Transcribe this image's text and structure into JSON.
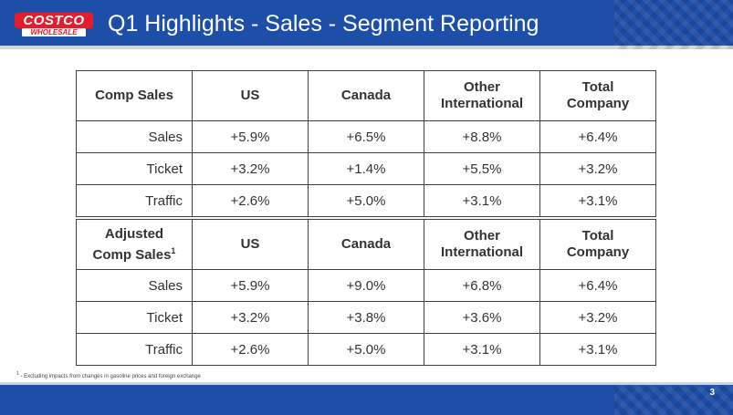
{
  "header": {
    "logo_top": "COSTCO",
    "logo_bottom": "WHOLESALE",
    "title": "Q1 Highlights - Sales - Segment Reporting"
  },
  "table1": {
    "header": {
      "label": "Comp Sales",
      "us": "US",
      "canada": "Canada",
      "other_line1": "Other",
      "other_line2": "International",
      "total_line1": "Total",
      "total_line2": "Company"
    },
    "rows": [
      {
        "label": "Sales",
        "us": "+5.9%",
        "canada": "+6.5%",
        "other": "+8.8%",
        "total": "+6.4%"
      },
      {
        "label": "Ticket",
        "us": "+3.2%",
        "canada": "+1.4%",
        "other": "+5.5%",
        "total": "+3.2%"
      },
      {
        "label": "Traffic",
        "us": "+2.6%",
        "canada": "+5.0%",
        "other": "+3.1%",
        "total": "+3.1%"
      }
    ]
  },
  "table2": {
    "header": {
      "label_line1": "Adjusted",
      "label_line2": "Comp Sales",
      "label_sup": "1",
      "us": "US",
      "canada": "Canada",
      "other_line1": "Other",
      "other_line2": "International",
      "total_line1": "Total",
      "total_line2": "Company"
    },
    "rows": [
      {
        "label": "Sales",
        "us": "+5.9%",
        "canada": "+9.0%",
        "other": "+6.8%",
        "total": "+6.4%"
      },
      {
        "label": "Ticket",
        "us": "+3.2%",
        "canada": "+3.8%",
        "other": "+3.6%",
        "total": "+3.2%"
      },
      {
        "label": "Traffic",
        "us": "+2.6%",
        "canada": "+5.0%",
        "other": "+3.1%",
        "total": "+3.1%"
      }
    ]
  },
  "footnote": {
    "sup": "1",
    "text": " - Excluding impacts from changes in gasoline prices and foreign exchange"
  },
  "footer": {
    "page_number": "3"
  },
  "colors": {
    "brand_blue": "#1d4fa8",
    "logo_red": "#e11d2e"
  }
}
